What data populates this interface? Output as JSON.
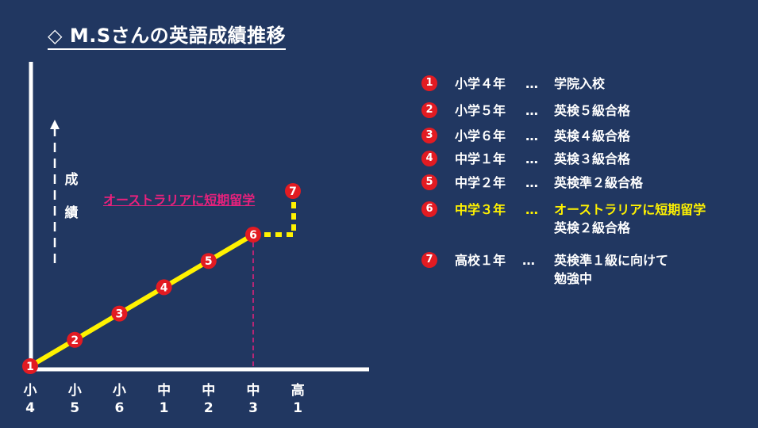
{
  "title": "◇ M.Sさんの英語成績推移",
  "y_axis_label": [
    "成",
    "績"
  ],
  "annotation": "オーストラリアに短期留学",
  "colors": {
    "background": "#213761",
    "line": "#fff200",
    "marker": "#e21b22",
    "annotation": "#e8217c",
    "highlight": "#fff200"
  },
  "chart_data": {
    "type": "line",
    "x_categories": [
      [
        "小",
        "4"
      ],
      [
        "小",
        "5"
      ],
      [
        "小",
        "6"
      ],
      [
        "中",
        "1"
      ],
      [
        "中",
        "2"
      ],
      [
        "中",
        "3"
      ],
      [
        "高",
        "1"
      ]
    ],
    "points": [
      {
        "label": "1",
        "x_index": 0,
        "level": 0
      },
      {
        "label": "2",
        "x_index": 1,
        "level": 1
      },
      {
        "label": "3",
        "x_index": 2,
        "level": 2
      },
      {
        "label": "4",
        "x_index": 3,
        "level": 3
      },
      {
        "label": "5",
        "x_index": 4,
        "level": 4
      },
      {
        "label": "6",
        "x_index": 5,
        "level": 5
      },
      {
        "label": "7",
        "x_index": 6,
        "level": 6
      }
    ]
  },
  "legend": [
    {
      "num": "1",
      "grade": "小学４年",
      "dots": "…",
      "result": "学院入校",
      "result2": "",
      "highlight": false
    },
    {
      "num": "2",
      "grade": "小学５年",
      "dots": "…",
      "result": "英検５級合格",
      "result2": "",
      "highlight": false
    },
    {
      "num": "3",
      "grade": "小学６年",
      "dots": "…",
      "result": "英検４級合格",
      "result2": "",
      "highlight": false
    },
    {
      "num": "4",
      "grade": "中学１年",
      "dots": "…",
      "result": "英検３級合格",
      "result2": "",
      "highlight": false
    },
    {
      "num": "5",
      "grade": "中学２年",
      "dots": "…",
      "result": "英検準２級合格",
      "result2": "",
      "highlight": false
    },
    {
      "num": "6",
      "grade": "中学３年",
      "dots": "…",
      "result": "オーストラリアに短期留学",
      "result2": "英検２級合格",
      "highlight": true
    },
    {
      "num": "7",
      "grade": "高校１年",
      "dots": "…",
      "result": "英検準１級に向けて",
      "result2": "勉強中",
      "highlight": false
    }
  ]
}
